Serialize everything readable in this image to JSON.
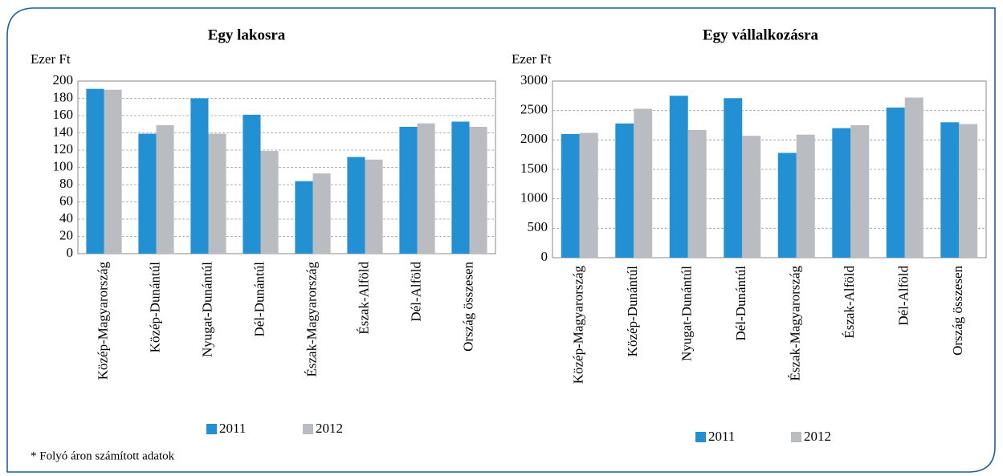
{
  "chart_data": [
    {
      "type": "bar",
      "title": "Egy lakosra",
      "y_label": "Ezer Ft",
      "categories": [
        "Közép-Magyarország",
        "Közép-Dunántúl",
        "Nyugat-Dunántúl",
        "Dél-Dunántúl",
        "Észak-Magyarország",
        "Észak-Alföld",
        "Dél-Alföld",
        "Ország összesen"
      ],
      "series": [
        {
          "name": "2011",
          "color": "#2490d4",
          "values": [
            191,
            139,
            180,
            161,
            84,
            112,
            147,
            153
          ]
        },
        {
          "name": "2012",
          "color": "#b9bcc0",
          "values": [
            190,
            149,
            139,
            119,
            93,
            109,
            151,
            147
          ]
        }
      ],
      "ylim": [
        0,
        200
      ],
      "yticks": [
        0,
        20,
        40,
        60,
        80,
        100,
        120,
        140,
        160,
        180,
        200
      ],
      "grid": true
    },
    {
      "type": "bar",
      "title": "Egy vállalkozásra",
      "y_label": "Ezer Ft",
      "categories": [
        "Közép-Magyarország",
        "Közép-Dunántúl",
        "Nyugat-Dunántúl",
        "Dél-Dunántúl",
        "Észak-Magyarország",
        "Észak-Alföld",
        "Dél-Alföld",
        "Ország összesen"
      ],
      "series": [
        {
          "name": "2011",
          "color": "#2490d4",
          "values": [
            2100,
            2280,
            2750,
            2710,
            1780,
            2200,
            2550,
            2300
          ]
        },
        {
          "name": "2012",
          "color": "#b9bcc0",
          "values": [
            2120,
            2530,
            2170,
            2070,
            2090,
            2250,
            2720,
            2270
          ]
        }
      ],
      "ylim": [
        0,
        3000
      ],
      "yticks": [
        0,
        500,
        1000,
        1500,
        2000,
        2500,
        3000
      ],
      "grid": true
    }
  ],
  "footnote": "* Folyó áron számított adatok"
}
